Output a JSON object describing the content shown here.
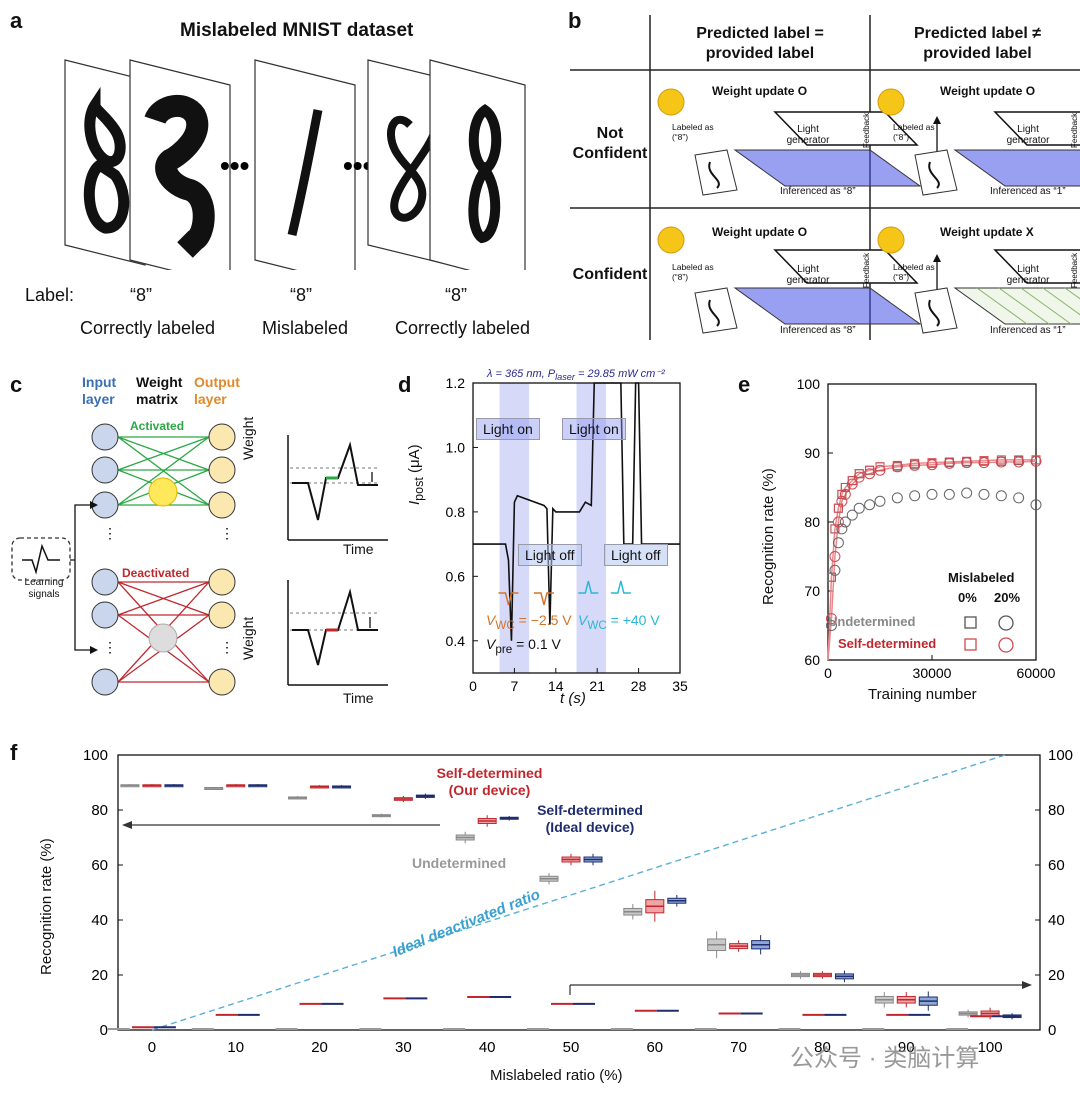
{
  "panel_a": {
    "letter": "a",
    "title": "Mislabeled MNIST dataset",
    "label_prefix": "Label:",
    "digits": [
      {
        "label": "“8”",
        "caption": "Correctly labeled"
      },
      {
        "label": "“8”",
        "caption": "Mislabeled"
      },
      {
        "label": "“8”",
        "caption": "Correctly labeled"
      }
    ],
    "ellipsis": "•••"
  },
  "panel_b": {
    "letter": "b",
    "col1": "Predicted label = provided label",
    "col1_l1": "Predicted label =",
    "col1_l2": "provided label",
    "col2_l1": "Predicted label ≠",
    "col2_l2": "provided label",
    "row1_l1": "Not",
    "row1_l2": "Confident",
    "row2": "Confident",
    "cells": [
      {
        "update": "Weight update O",
        "labeled": "Labeled as (“8”)",
        "inferenced": "Inferenced as “8”"
      },
      {
        "update": "Weight update O",
        "labeled": "Labeled as (“8”)",
        "inferenced": "Inferenced as “1”"
      },
      {
        "update": "Weight update O",
        "labeled": "Labeled as (“8”)",
        "inferenced": "Inferenced as “8”"
      },
      {
        "update": "Weight update X",
        "labeled": "Labeled as (“8”)",
        "inferenced": "Inferenced as “1”"
      }
    ],
    "light_generator": "Light generator",
    "feedback": "Feedback"
  },
  "panel_c": {
    "letter": "c",
    "input": "Input layer",
    "weight": "Weight matrix",
    "output": "Output layer",
    "activated": "Activated",
    "deactivated": "Deactivated",
    "learning": "Learning signals",
    "weight_axis": "Weight",
    "time_axis": "Time",
    "colors": {
      "input": "#3a6fb5",
      "output": "#e08a2c",
      "activated": "#2aa845",
      "deactivated": "#c0272d"
    }
  },
  "panel_d": {
    "letter": "d",
    "header": "λ = 365 nm, P",
    "header_sub": "laser",
    "header_tail": " = 29.85 mW cm⁻²",
    "ylabel": "I",
    "ylabel_sub": "post",
    "ylabel_unit": " (μA)",
    "xlabel": "t (s)",
    "yticks": [
      "0.4",
      "0.6",
      "0.8",
      "1.0",
      "1.2"
    ],
    "xticks": [
      "0",
      "7",
      "14",
      "21",
      "28",
      "35"
    ],
    "light_on": "Light on",
    "light_off": "Light off",
    "vwc_neg": "V",
    "vwc_neg_val": " = −2.5 V",
    "vwc_pos_val": " = +40 V",
    "vwc_sub": "WC",
    "vpre": "V",
    "vpre_sub": "pre",
    "vpre_val": " = 0.1 V"
  },
  "panel_e": {
    "letter": "e",
    "ylabel": "Recognition rate (%)",
    "xlabel": "Training number",
    "yticks": [
      "60",
      "70",
      "80",
      "90",
      "100"
    ],
    "xticks": [
      "0",
      "30000",
      "60000"
    ],
    "legend_title": "Mislabeled",
    "col0": "0%",
    "col20": "20%",
    "undetermined": "Undetermined",
    "self_determined": "Self-determined"
  },
  "panel_f": {
    "letter": "f",
    "ylabel": "Recognition rate (%)",
    "xlabel": "Mislabeled ratio (%)",
    "yticks": [
      "0",
      "20",
      "40",
      "60",
      "80",
      "100"
    ],
    "xticks": [
      "0",
      "10",
      "20",
      "30",
      "40",
      "50",
      "60",
      "70",
      "80",
      "90",
      "100"
    ],
    "self_our_l1": "Self-determined",
    "self_our_l2": "(Our device)",
    "self_ideal_l1": "Self-determined",
    "self_ideal_l2": "(Ideal device)",
    "undetermined": "Undetermined",
    "ideal_deactivated": "Ideal deactivated ratio",
    "watermark": "公众号 · 类脑计算"
  },
  "chart_data": [
    {
      "type": "line",
      "title": "λ = 365 nm, Plaser = 29.85 mW cm⁻²",
      "xlabel": "t (s)",
      "ylabel": "Ipost (μA)",
      "xlim": [
        0,
        35
      ],
      "ylim": [
        0.3,
        1.2
      ],
      "x": [
        0,
        4,
        5.5,
        6,
        6.5,
        7,
        7.5,
        12,
        12.5,
        13,
        13.5,
        14,
        18,
        19,
        20,
        20.5,
        25,
        25.5,
        27,
        27.5,
        28,
        28.5,
        35
      ],
      "series": [
        {
          "name": "Ipost",
          "values": [
            0.7,
            0.7,
            0.7,
            0.65,
            0.4,
            0.83,
            0.85,
            0.82,
            0.81,
            0.45,
            0.81,
            0.8,
            0.8,
            0.83,
            0.82,
            1.2,
            1.2,
            0.7,
            0.7,
            1.2,
            1.2,
            0.7,
            0.7
          ]
        }
      ]
    },
    {
      "type": "scatter",
      "xlabel": "Training number",
      "ylabel": "Recognition rate (%)",
      "xlim": [
        0,
        60000
      ],
      "ylim": [
        60,
        100
      ],
      "x": [
        1000,
        2000,
        3000,
        4000,
        5000,
        7000,
        9000,
        12000,
        15000,
        20000,
        25000,
        30000,
        35000,
        40000,
        45000,
        50000,
        55000,
        60000
      ],
      "series": [
        {
          "name": "Undetermined 0%",
          "values": [
            72,
            79,
            82,
            84,
            85,
            86,
            87,
            87.5,
            88,
            88,
            88.3,
            88.5,
            88.6,
            88.7,
            88.8,
            88.8,
            88.9,
            89
          ]
        },
        {
          "name": "Self-determined 0%",
          "values": [
            72,
            79,
            82,
            84,
            85,
            86,
            87,
            87.5,
            88,
            88.2,
            88.5,
            88.6,
            88.7,
            88.8,
            88.9,
            89,
            89,
            89
          ]
        },
        {
          "name": "Undetermined 20%",
          "values": [
            65,
            73,
            77,
            79,
            80,
            81,
            82,
            82.5,
            83,
            83.5,
            83.8,
            84,
            84,
            84.2,
            84,
            83.8,
            83.5,
            82.5
          ]
        },
        {
          "name": "Self-determined 20%",
          "values": [
            66,
            75,
            80,
            83,
            84,
            85.5,
            86.5,
            87,
            87.5,
            88,
            88.2,
            88.3,
            88.5,
            88.6,
            88.6,
            88.7,
            88.7,
            88.8
          ]
        }
      ]
    },
    {
      "type": "bar",
      "title": "",
      "xlabel": "Mislabeled ratio (%)",
      "ylabel": "Recognition rate (%)",
      "ylim": [
        0,
        100
      ],
      "categories": [
        "0",
        "10",
        "20",
        "30",
        "40",
        "50",
        "60",
        "70",
        "80",
        "90",
        "100"
      ],
      "series": [
        {
          "name": "Undetermined",
          "values": [
            89,
            88,
            84.5,
            78,
            70,
            55,
            43,
            31,
            20,
            11,
            6
          ],
          "spread": [
            0.3,
            0.3,
            0.4,
            0.5,
            1.5,
            1.5,
            2,
            3.5,
            1,
            2,
            1
          ]
        },
        {
          "name": "Self-determined (Our device)",
          "values": [
            89,
            89,
            88.5,
            84,
            76,
            62,
            45,
            30.5,
            20,
            11,
            6
          ],
          "spread": [
            0.3,
            0.3,
            0.4,
            0.8,
            1.5,
            1.5,
            4,
            1.5,
            1,
            2,
            1.5
          ]
        },
        {
          "name": "Self-determined (Ideal device)",
          "values": [
            89,
            89,
            88.5,
            85,
            77,
            62,
            47,
            31,
            19.5,
            10.5,
            5
          ],
          "spread": [
            0.3,
            0.3,
            0.4,
            0.7,
            0.6,
            1.5,
            1.5,
            2.5,
            1.5,
            2.5,
            0.8
          ]
        },
        {
          "name": "Deactivated ratio (Our device)",
          "values": [
            1,
            5.5,
            9.5,
            11.5,
            12,
            9.5,
            7,
            6,
            5.5,
            5.5,
            5
          ]
        },
        {
          "name": "Ideal deactivated ratio",
          "values": [
            0,
            10,
            20,
            30,
            40,
            50,
            60,
            70,
            80,
            90,
            100
          ]
        }
      ]
    }
  ]
}
